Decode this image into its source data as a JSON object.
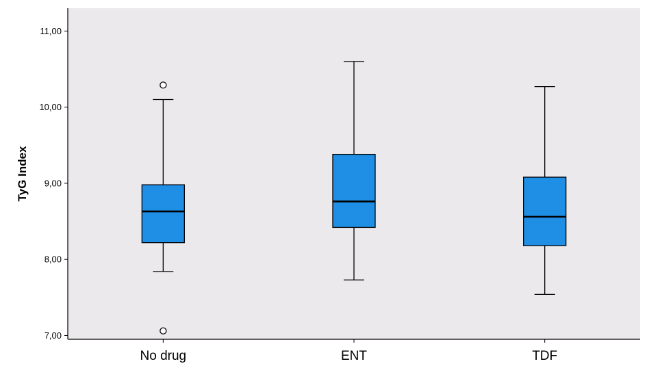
{
  "chart_data": {
    "type": "boxplot",
    "ylabel": "TyG Index",
    "ylim": [
      6.95,
      11.3
    ],
    "yticks": [
      7.0,
      8.0,
      9.0,
      10.0,
      11.0
    ],
    "ytick_labels": [
      "7,00",
      "8,00",
      "9,00",
      "10,00",
      "11,00"
    ],
    "grid": false,
    "categories": [
      "No drug",
      "ENT",
      "TDF"
    ],
    "colors": {
      "box_fill": "#1f8fe6",
      "plot_bg": "#ece9ec",
      "stroke": "#000000"
    },
    "boxes": [
      {
        "category": "No drug",
        "whisker_low": 7.84,
        "q1": 8.22,
        "median": 8.63,
        "q3": 8.98,
        "whisker_high": 10.1,
        "outliers": [
          10.29,
          7.06
        ]
      },
      {
        "category": "ENT",
        "whisker_low": 7.73,
        "q1": 8.42,
        "median": 8.76,
        "q3": 9.38,
        "whisker_high": 10.6,
        "outliers": []
      },
      {
        "category": "TDF",
        "whisker_low": 7.54,
        "q1": 8.18,
        "median": 8.56,
        "q3": 9.08,
        "whisker_high": 10.27,
        "outliers": []
      }
    ]
  }
}
